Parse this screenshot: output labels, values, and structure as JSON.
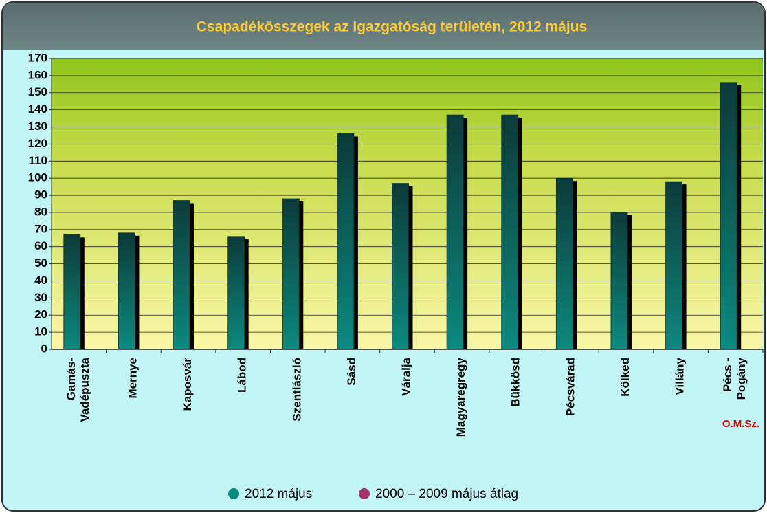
{
  "chart_data": {
    "type": "bar",
    "title": "Csapadékösszegek az Igazgatóság területén, 2012 május",
    "categories": [
      "Gamás-\nVadépuszta",
      "Mernye",
      "Kaposvár",
      "Lábod",
      "Szentlászló",
      "Sásd",
      "Váralja",
      "Magyaregregy",
      "Bükkösd",
      "Pécsvárad",
      "Kölked",
      "Villány",
      "Pécs -\nPogány"
    ],
    "series": [
      {
        "name": "2012 május",
        "color": "#0b8a80",
        "values": [
          67,
          68,
          87,
          66,
          88,
          126,
          97,
          137,
          137,
          100,
          80,
          98,
          156
        ]
      },
      {
        "name": "2000 – 2009 május átlag",
        "color": "#a0336e",
        "values": [
          null,
          null,
          null,
          null,
          null,
          null,
          null,
          null,
          null,
          null,
          null,
          null,
          null
        ]
      }
    ],
    "ylim": [
      0,
      170
    ],
    "yticks": [
      0,
      10,
      20,
      30,
      40,
      50,
      60,
      70,
      80,
      90,
      100,
      110,
      120,
      130,
      140,
      150,
      160,
      170
    ],
    "grid": true,
    "legend": "bottom",
    "annotation": "O.M.Sz."
  }
}
